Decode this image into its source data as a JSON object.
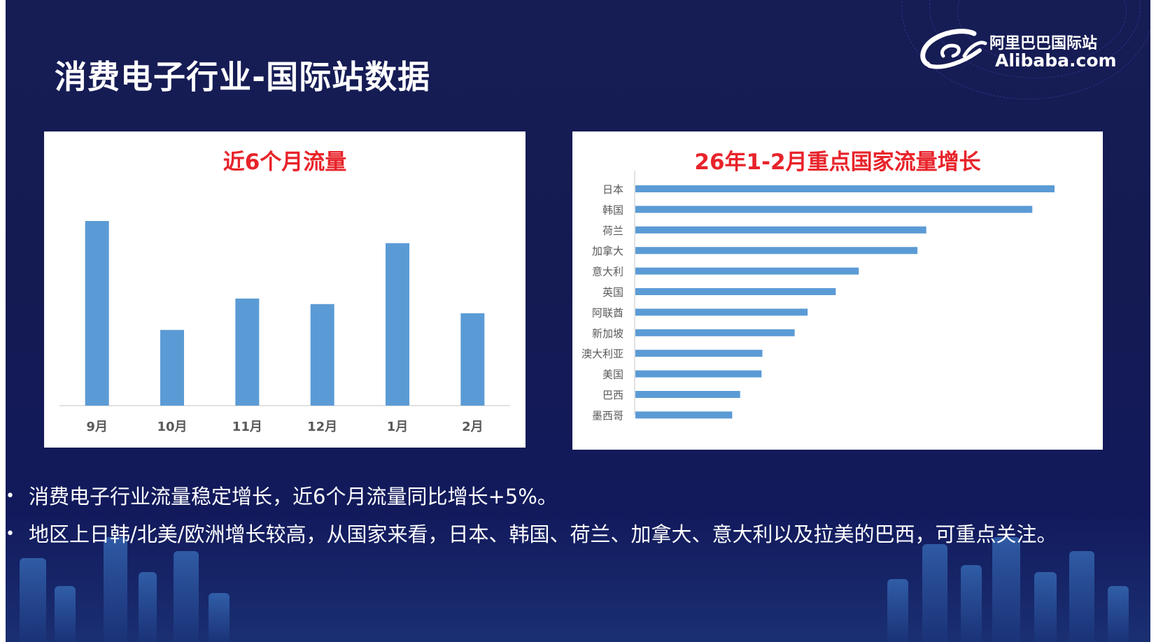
{
  "page": {
    "title": "消费电子行业-国际站数据"
  },
  "logo": {
    "cn": "阿里巴巴国际站",
    "en": "Alibaba.com"
  },
  "bullets": [
    "消费电子行业流量稳定增长，近6个月流量同比增长+5%。",
    "地区上日韩/北美/欧洲增长较高，从国家来看，日本、韩国、荷兰、加拿大、意大利以及拉美的巴西，可重点关注。"
  ],
  "colors": {
    "background": "#141a52",
    "bar": "#5b9bd5",
    "chart_title": "#e8232a"
  },
  "chart_data": [
    {
      "type": "bar",
      "orientation": "vertical",
      "title": "近6个月流量",
      "categories": [
        "9月",
        "10月",
        "11月",
        "12月",
        "1月",
        "2月"
      ],
      "values": [
        100,
        41,
        58,
        55,
        88,
        50
      ],
      "ylim": [
        0,
        100
      ],
      "value_axis_visible": false,
      "grid": false,
      "legend": "none"
    },
    {
      "type": "bar",
      "orientation": "horizontal",
      "title": "26年1-2月重点国家流量增长",
      "categories": [
        "日本",
        "韩国",
        "荷兰",
        "加拿大",
        "意大利",
        "英国",
        "阿联酋",
        "新加坡",
        "澳大利亚",
        "美国",
        "巴西",
        "墨西哥"
      ],
      "values": [
        100,
        94.7,
        69.4,
        67.3,
        53.3,
        47.8,
        41.1,
        38.0,
        30.3,
        30.1,
        25.0,
        23.1
      ],
      "xlim": [
        0,
        100
      ],
      "value_axis_visible": false,
      "grid": false,
      "legend": "none"
    }
  ]
}
